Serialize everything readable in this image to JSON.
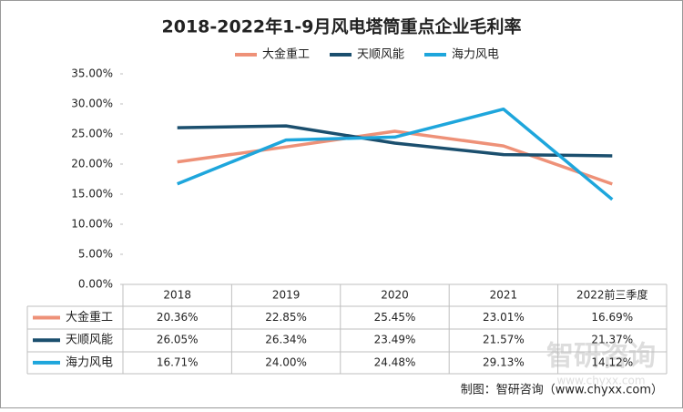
{
  "chart_data": {
    "type": "line",
    "title": "2018-2022年1-9月风电塔筒重点企业毛利率",
    "categories": [
      "2018",
      "2019",
      "2020",
      "2021",
      "2022前三季度"
    ],
    "series": [
      {
        "name": "大金重工",
        "color": "#ee9178",
        "values": [
          20.36,
          22.85,
          25.45,
          23.01,
          16.69
        ],
        "value_labels": [
          "20.36%",
          "22.85%",
          "25.45%",
          "23.01%",
          "16.69%"
        ]
      },
      {
        "name": "天顺风能",
        "color": "#1b4f6e",
        "values": [
          26.05,
          26.34,
          23.49,
          21.57,
          21.37
        ],
        "value_labels": [
          "26.05%",
          "26.34%",
          "23.49%",
          "21.57%",
          "21.37%"
        ]
      },
      {
        "name": "海力风电",
        "color": "#1ea6dc",
        "values": [
          16.71,
          24,
          24.48,
          29.13,
          14.12
        ],
        "value_labels": [
          "16.71%",
          "24.00%",
          "24.48%",
          "29.13%",
          "14.12%"
        ]
      }
    ],
    "ylim": [
      0,
      35
    ],
    "yticks": [
      {
        "value": 0,
        "label": "0.00%"
      },
      {
        "value": 5,
        "label": "5.00%"
      },
      {
        "value": 10,
        "label": "10.00%"
      },
      {
        "value": 15,
        "label": "15.00%"
      },
      {
        "value": 20,
        "label": "20.00%"
      },
      {
        "value": 25,
        "label": "25.00%"
      },
      {
        "value": 30,
        "label": "30.00%"
      },
      {
        "value": 35,
        "label": "35.00%"
      }
    ],
    "legend": "top",
    "source": "制图：智研咨询（www.chyxx.com）",
    "watermark": "智研咨询",
    "watermark_url": "www.chyxx.com"
  }
}
